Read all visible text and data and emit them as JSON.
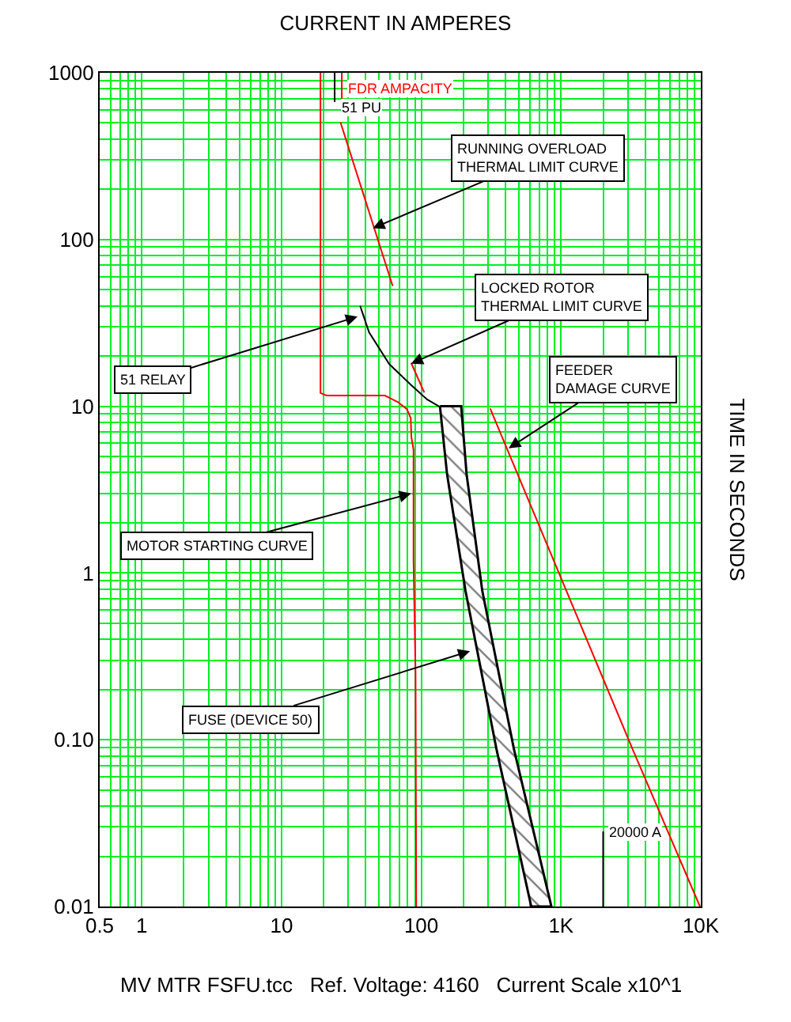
{
  "chart_data": {
    "type": "line",
    "title": "CURRENT IN AMPERES",
    "ylabel": "TIME IN SECONDS",
    "log": "xy",
    "grid": true,
    "marker": "none",
    "line_style": "solid",
    "xlim": [
      0.5,
      10000
    ],
    "ylim": [
      0.01,
      1000
    ],
    "xticks": [
      0.5,
      1,
      10,
      100,
      {
        "value": 1000,
        "label": "1K"
      },
      {
        "value": 10000,
        "label": "10K"
      }
    ],
    "yticks": [
      1000,
      100,
      10,
      1,
      {
        "value": 0.1,
        "label": "0.10"
      },
      0.01
    ],
    "series": [
      {
        "color": "#ff0000",
        "x": [
          19,
          19,
          21,
          55,
          68,
          79,
          84,
          85,
          88,
          88,
          91,
          92
        ],
        "values": [
          1000,
          12,
          11.6,
          11.6,
          10.6,
          9.6,
          8.5,
          6.5,
          5.5,
          1.2,
          0.25,
          0.01
        ]
      },
      {
        "color": "#ff0000",
        "x": [
          26.4,
          62.4
        ],
        "values": [
          505,
          52.7
        ]
      },
      {
        "color": "#ff0000",
        "x": [
          84.6,
          105
        ],
        "values": [
          18.2,
          12.1
        ]
      },
      {
        "color": "#000000",
        "x": [
          36.5,
          42.3,
          59,
          84.6,
          110,
          142
        ],
        "values": [
          40,
          27.8,
          17.9,
          13.4,
          11,
          9.7
        ]
      },
      {
        "color": "#ff0000",
        "x": [
          311,
          3245,
          9860
        ],
        "values": [
          9.7,
          0.088,
          0.01
        ]
      },
      {
        "type": "area",
        "color": "#000000",
        "x": [
          136,
          153,
          207,
          345,
          612,
          853,
          460,
          273,
          211,
          193,
          136
        ],
        "values": [
          10,
          3.9,
          0.785,
          0.088,
          0.01,
          0.01,
          0.088,
          0.785,
          3.9,
          10,
          10
        ]
      }
    ],
    "ref_lines": [
      {
        "axis": "x",
        "value": 27,
        "label": "FDR AMPACITY",
        "color": "#ff0000"
      },
      {
        "axis": "x",
        "value": 24,
        "label": "51 PU",
        "color": "#000000"
      },
      {
        "axis": "x",
        "value": 2000,
        "label": "20000 A",
        "color": "#000000"
      }
    ],
    "annotations": [
      {
        "text": "RUNNING OVERLOAD\nTHERMAL LIMIT CURVE",
        "x": 45,
        "y": 117
      },
      {
        "text": "LOCKED ROTOR\nTHERMAL LIMIT CURVE",
        "x": 84.6,
        "y": 18
      },
      {
        "text": "51 RELAY",
        "x": 35,
        "y": 34.5
      },
      {
        "text": "FEEDER\nDAMAGE CURVE",
        "x": 422,
        "y": 5.6
      },
      {
        "text": "MOTOR STARTING CURVE",
        "x": 84.6,
        "y": 3.0
      },
      {
        "text": "FUSE (DEVICE 50)",
        "x": 223,
        "y": 0.34
      },
      "MV MTR FSFU.tcc   Ref. Voltage: 4160   Current Scale x10^1"
    ]
  }
}
